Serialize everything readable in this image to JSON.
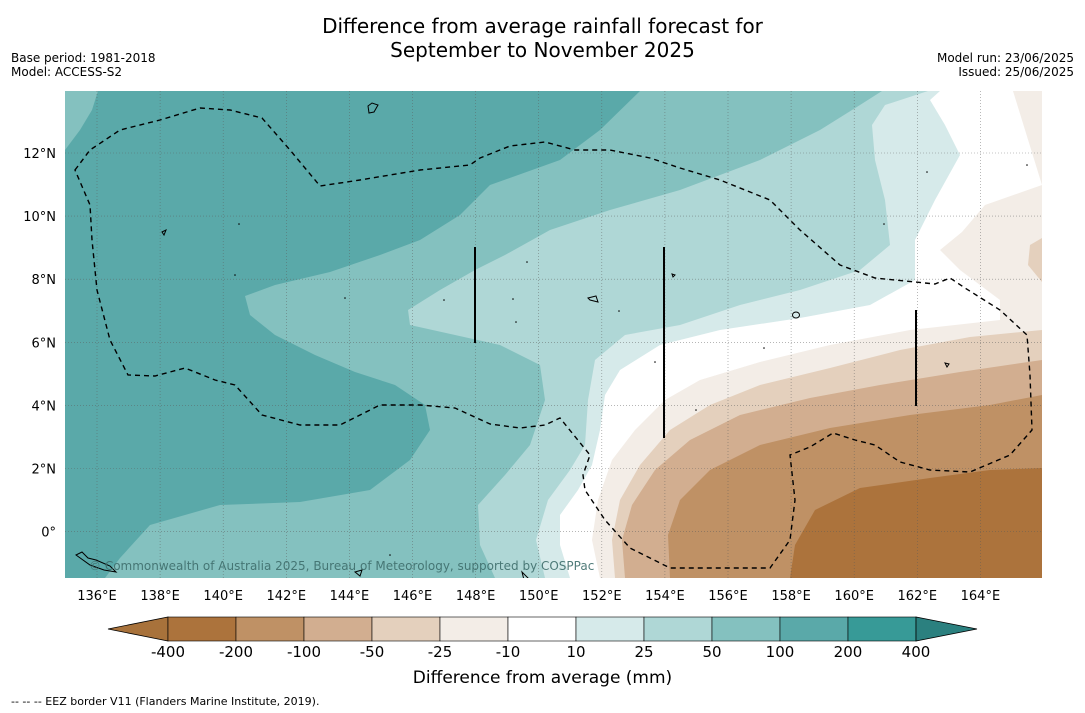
{
  "title_line1": "Difference from average rainfall forecast for",
  "title_line2": "September to November 2025",
  "base_period": "Base period: 1981-2018",
  "model": "Model: ACCESS-S2",
  "model_run": "Model run: 23/06/2025",
  "issued": "Issued: 25/06/2025",
  "copyright": "© Commonwealth of Australia 2025, Bureau of Meteorology, supported by COSPPac",
  "x_ticks": [
    "136°E",
    "138°E",
    "140°E",
    "142°E",
    "144°E",
    "146°E",
    "148°E",
    "150°E",
    "152°E",
    "154°E",
    "156°E",
    "158°E",
    "160°E",
    "162°E",
    "164°E"
  ],
  "y_ticks": [
    "12°N",
    "10°N",
    "8°N",
    "6°N",
    "4°N",
    "2°N",
    "0°"
  ],
  "colorbar": {
    "title": "Difference from average (mm)",
    "labels": [
      "-400",
      "-200",
      "-100",
      "-50",
      "-25",
      "-10",
      "10",
      "25",
      "50",
      "100",
      "200",
      "400"
    ],
    "colors": [
      "#a8723b",
      "#ac733c",
      "#bf9165",
      "#d2ae90",
      "#e4d0bd",
      "#f3ede7",
      "#ffffff",
      "#d6eaea",
      "#afd7d6",
      "#84c1bf",
      "#5aa9a9",
      "#379a97",
      "#2b807f"
    ]
  },
  "footer": "--  --  -- EEZ border V11 (Flanders Marine Institute, 2019)."
}
